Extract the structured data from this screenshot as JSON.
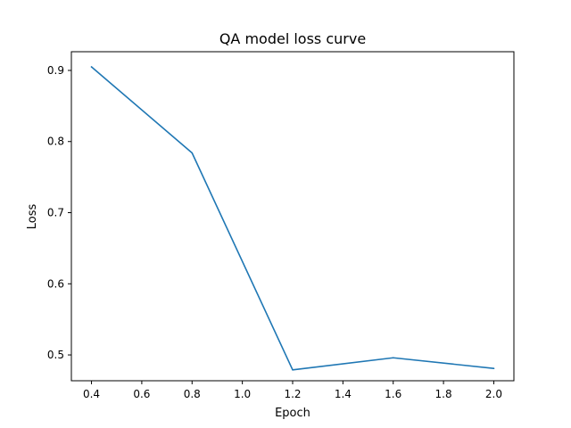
{
  "chart_data": {
    "type": "line",
    "title": "QA model loss curve",
    "xlabel": "Epoch",
    "ylabel": "Loss",
    "x": [
      0.4,
      0.8,
      1.2,
      1.6,
      2.0
    ],
    "series": [
      {
        "values": [
          0.905,
          0.784,
          0.479,
          0.496,
          0.481
        ],
        "color": "#1f77b4"
      }
    ],
    "xlim": [
      0.32,
      2.08
    ],
    "ylim": [
      0.4637,
      0.9263
    ],
    "xticks": [
      0.4,
      0.6,
      0.8,
      1.0,
      1.2,
      1.4,
      1.6,
      1.8,
      2.0
    ],
    "xtick_labels": [
      "0.4",
      "0.6",
      "0.8",
      "1.0",
      "1.2",
      "1.4",
      "1.6",
      "1.8",
      "2.0"
    ],
    "yticks": [
      0.5,
      0.6,
      0.7,
      0.8,
      0.9
    ],
    "ytick_labels": [
      "0.5",
      "0.6",
      "0.7",
      "0.8",
      "0.9"
    ],
    "grid": false,
    "legend": false
  }
}
